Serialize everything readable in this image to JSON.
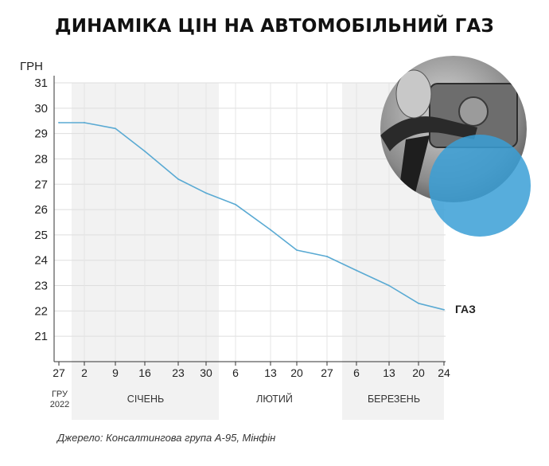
{
  "title": "ДИНАМІКА ЦІН НА АВТОМОБІЛЬНИЙ ГАЗ",
  "source": "Джерело: Консалтингова група А-95, Мінфін",
  "colors": {
    "line": "#5aaad3",
    "band": "#f2f2f2",
    "grid": "#ffffff",
    "accent_circle": "#3a9fd6"
  },
  "photo_icon": "gas-pump-nozzle-photo",
  "chart_data": {
    "type": "line",
    "title": "ДИНАМІКА ЦІН НА АВТОМОБІЛЬНИЙ ГАЗ",
    "ylabel": "ГРН",
    "xlabel": "",
    "ylim": [
      20,
      31
    ],
    "yticks": [
      "21",
      "22",
      "23",
      "24",
      "25",
      "26",
      "27",
      "28",
      "29",
      "30",
      "31"
    ],
    "xticks": [
      "27",
      "2",
      "9",
      "16",
      "23",
      "30",
      "6",
      "13",
      "20",
      "27",
      "6",
      "13",
      "20",
      "24"
    ],
    "month_labels": [
      "СІЧЕНЬ",
      "ЛЮТИЙ",
      "БЕРЕЗЕНЬ"
    ],
    "start_label_line1": "ГРУ",
    "start_label_line2": "2022",
    "grid": true,
    "series": [
      {
        "name": "ГАЗ",
        "points": [
          [
            "27",
            29.43
          ],
          [
            "2",
            29.43
          ],
          [
            "9",
            29.2
          ],
          [
            "16",
            28.3
          ],
          [
            "23",
            27.2
          ],
          [
            "30",
            26.65
          ],
          [
            "6",
            26.2
          ],
          [
            "13",
            25.2
          ],
          [
            "20",
            24.4
          ],
          [
            "27",
            24.15
          ],
          [
            "6",
            23.6
          ],
          [
            "13",
            23.0
          ],
          [
            "20",
            22.3
          ],
          [
            "24",
            22.05
          ]
        ]
      }
    ]
  }
}
